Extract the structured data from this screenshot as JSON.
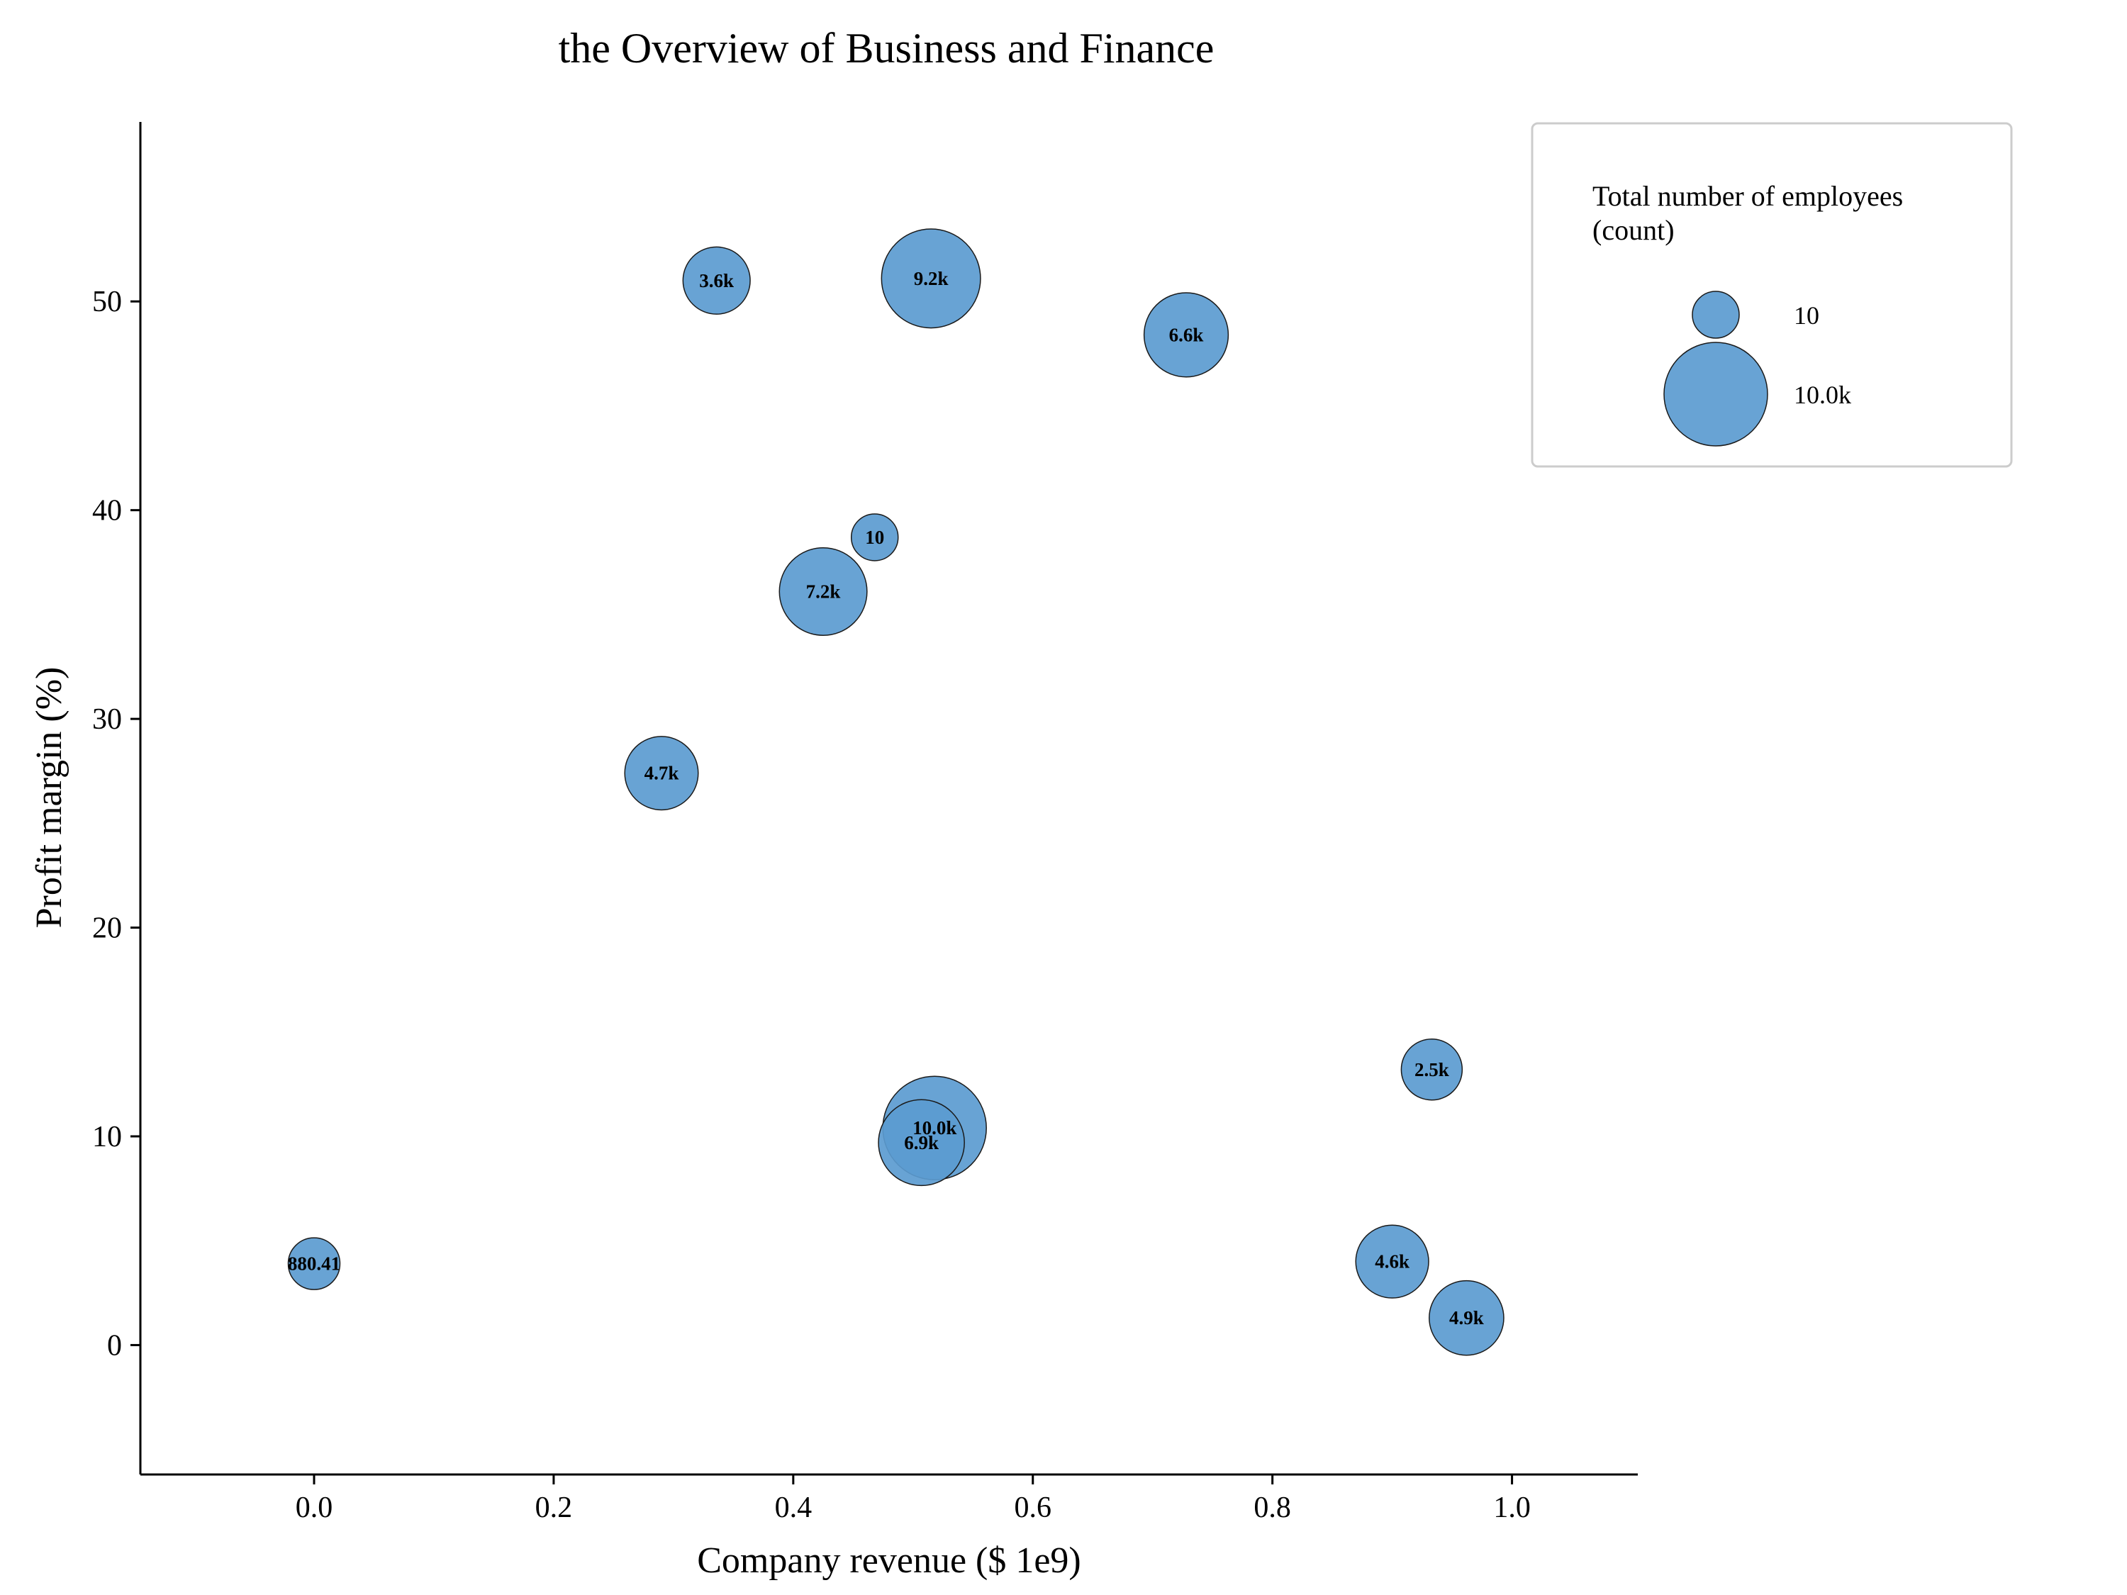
{
  "chart_data": {
    "type": "scatter",
    "subtype": "bubble",
    "title": "the Overview of Business and Finance",
    "xlabel": "Company revenue ($ 1e9)",
    "ylabel": "Profit margin (%)",
    "xlim": [
      -0.145,
      1.105
    ],
    "ylim": [
      -6.2,
      58.6
    ],
    "x_ticks": [
      0.0,
      0.2,
      0.4,
      0.6,
      0.8,
      1.0
    ],
    "x_tick_labels": [
      "0.0",
      "0.2",
      "0.4",
      "0.6",
      "0.8",
      "1.0"
    ],
    "y_ticks": [
      0,
      10,
      20,
      30,
      40,
      50
    ],
    "y_tick_labels": [
      "0",
      "10",
      "20",
      "30",
      "40",
      "50"
    ],
    "grid": false,
    "bubble_color": "#5b9bd0",
    "bubble_edge_color": "#1a1a1a",
    "size_legend": {
      "title": "Total number of employees\n(count)",
      "placement": "upper-right",
      "entries": [
        {
          "label": "10",
          "value": 10
        },
        {
          "label": "10.0k",
          "value": 10000
        }
      ]
    },
    "points": [
      {
        "x": 0.0,
        "y": 3.9,
        "size": 880.41,
        "label": "880.41"
      },
      {
        "x": 0.29,
        "y": 27.4,
        "size": 4700,
        "label": "4.7k"
      },
      {
        "x": 0.336,
        "y": 51.0,
        "size": 3600,
        "label": "3.6k"
      },
      {
        "x": 0.425,
        "y": 36.1,
        "size": 7200,
        "label": "7.2k"
      },
      {
        "x": 0.468,
        "y": 38.7,
        "size": 10,
        "label": "10"
      },
      {
        "x": 0.515,
        "y": 51.1,
        "size": 9200,
        "label": "9.2k"
      },
      {
        "x": 0.518,
        "y": 10.4,
        "size": 10000,
        "label": "10.0k"
      },
      {
        "x": 0.507,
        "y": 9.7,
        "size": 6900,
        "label": "6.9k"
      },
      {
        "x": 0.728,
        "y": 48.4,
        "size": 6600,
        "label": "6.6k"
      },
      {
        "x": 0.9,
        "y": 4.0,
        "size": 4600,
        "label": "4.6k"
      },
      {
        "x": 0.933,
        "y": 13.2,
        "size": 2500,
        "label": "2.5k"
      },
      {
        "x": 0.962,
        "y": 1.3,
        "size": 4900,
        "label": "4.9k"
      }
    ]
  }
}
